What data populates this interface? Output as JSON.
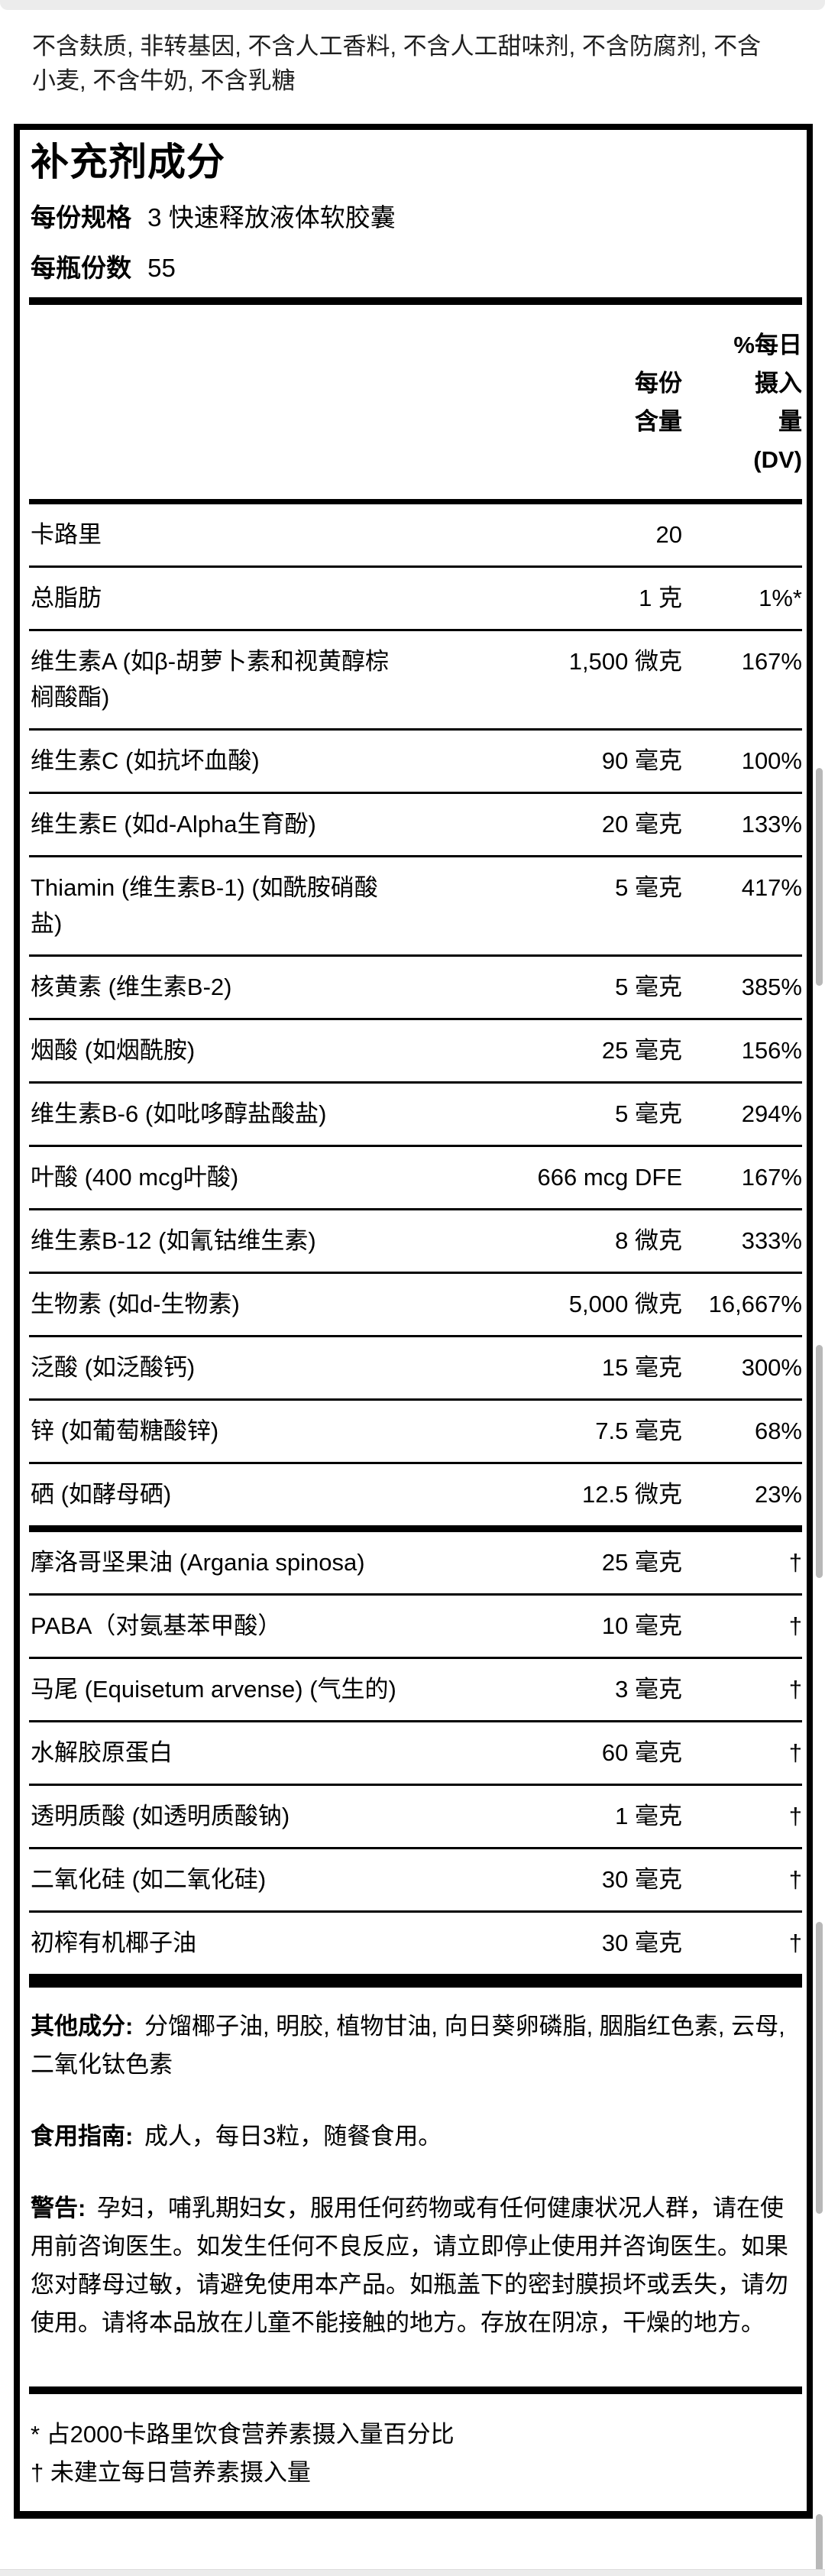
{
  "page": {
    "intro": "不含麸质, 非转基因, 不含人工香料, 不含人工甜味剂, 不含防腐剂, 不含小麦, 不含牛奶, 不含乳糖"
  },
  "panel": {
    "title": "补充剂成分",
    "serving_size_label": "每份规格",
    "serving_size_value": "3 快速释放液体软胶囊",
    "servings_per_bottle_label": "每瓶份数",
    "servings_per_bottle_value": "55",
    "col_amount_header": "每份\n含量",
    "col_dv_header": "%每日\n摄入\n量\n(DV)",
    "rows": [
      {
        "name": "卡路里",
        "amount": "20",
        "dv": ""
      },
      {
        "name": "总脂肪",
        "amount": "1 克",
        "dv": "1%*"
      },
      {
        "name": "维生素A (如β-胡萝卜素和视黄醇棕\n榈酸酯)",
        "amount": "1,500 微克",
        "dv": "167%"
      },
      {
        "name": "维生素C (如抗坏血酸)",
        "amount": "90 毫克",
        "dv": "100%"
      },
      {
        "name": "维生素E (如d-Alpha生育酚)",
        "amount": "20 毫克",
        "dv": "133%"
      },
      {
        "name": "Thiamin (维生素B-1) (如酰胺硝酸\n盐)",
        "amount": "5 毫克",
        "dv": "417%"
      },
      {
        "name": "核黄素 (维生素B-2)",
        "amount": "5 毫克",
        "dv": "385%"
      },
      {
        "name": "烟酸 (如烟酰胺)",
        "amount": "25 毫克",
        "dv": "156%"
      },
      {
        "name": "维生素B-6 (如吡哆醇盐酸盐)",
        "amount": "5 毫克",
        "dv": "294%"
      },
      {
        "name": "叶酸 (400 mcg叶酸)",
        "amount": "666 mcg DFE",
        "dv": "167%"
      },
      {
        "name": "维生素B-12 (如氰钴维生素)",
        "amount": "8 微克",
        "dv": "333%"
      },
      {
        "name": "生物素 (如d-生物素)",
        "amount": "5,000 微克",
        "dv": "16,667%"
      },
      {
        "name": "泛酸 (如泛酸钙)",
        "amount": "15 毫克",
        "dv": "300%"
      },
      {
        "name": "锌 (如葡萄糖酸锌)",
        "amount": "7.5 毫克",
        "dv": "68%"
      },
      {
        "name": "硒 (如酵母硒)",
        "amount": "12.5 微克",
        "dv": "23%"
      },
      {
        "name": "摩洛哥坚果油 (Argania spinosa)",
        "amount": "25 毫克",
        "dv": "†",
        "divider_before": "thick"
      },
      {
        "name": "PABA（对氨基苯甲酸）",
        "amount": "10 毫克",
        "dv": "†"
      },
      {
        "name": "马尾 (Equisetum arvense) (气生的)",
        "amount": "3 毫克",
        "dv": "†"
      },
      {
        "name": "水解胶原蛋白",
        "amount": "60 毫克",
        "dv": "†"
      },
      {
        "name": "透明质酸 (如透明质酸钠)",
        "amount": "1 毫克",
        "dv": "†"
      },
      {
        "name": "二氧化硅 (如二氧化硅)",
        "amount": "30 毫克",
        "dv": "†"
      },
      {
        "name": "初榨有机椰子油",
        "amount": "30 毫克",
        "dv": "†"
      }
    ],
    "other_ingredients_label": "其他成分:",
    "other_ingredients_text": "分馏椰子油, 明胶, 植物甘油, 向日葵卵磷脂, 胭脂红色素, 云母, 二氧化钛色素",
    "directions_label": "食用指南:",
    "directions_text": "成人，每日3粒，随餐食用。",
    "warning_label": "警告:",
    "warning_text": "孕妇，哺乳期妇女，服用任何药物或有任何健康状况人群，请在使用前咨询医生。如发生任何不良反应，请立即停止使用并咨询医生。如果您对酵母过敏，请避免使用本产品。如瓶盖下的密封膜损坏或丢失，请勿使用。请将本品放在儿童不能接触的地方。存放在阴凉，干燥的地方。",
    "footnote_calorie": "* 占2000卡路里饮食营养素摄入量百分比",
    "footnote_dv": "† 未建立每日营养素摄入量"
  },
  "colors": {
    "panel_border": "#000000",
    "edge_strip": "#ececec",
    "scrollbar_thumb": "#b8b8b8"
  }
}
